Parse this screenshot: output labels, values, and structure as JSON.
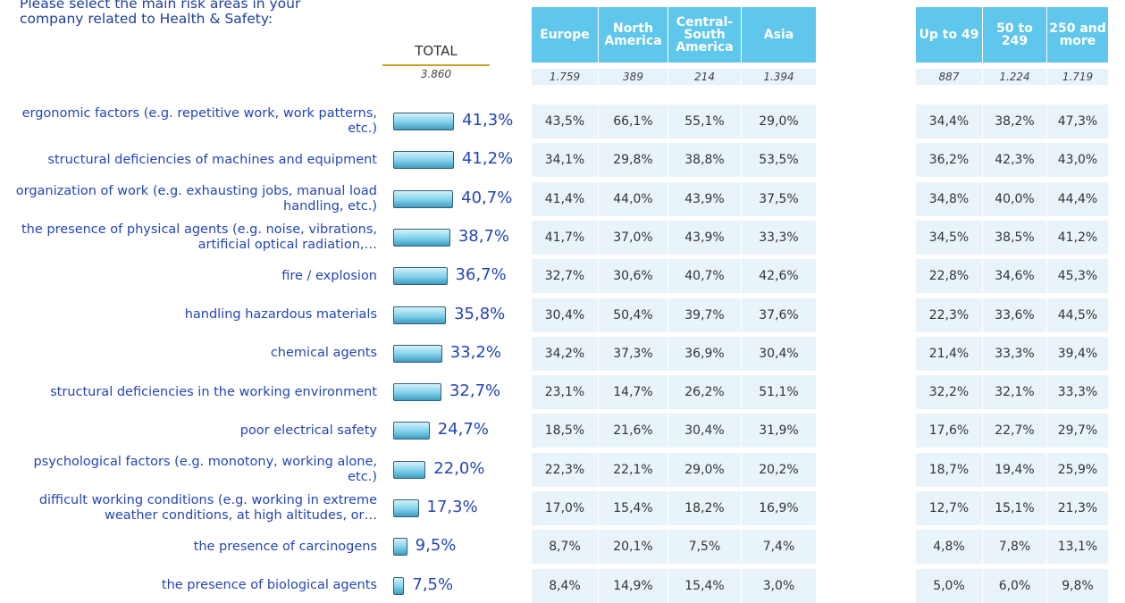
{
  "chart_data": {
    "type": "bar",
    "title": "Please select the main risk areas in your company related to Health & Safety:",
    "total_label": "TOTAL",
    "total_base": "3.860",
    "color": "#7fd0ea",
    "categories": [
      "ergonomic factors (e.g. repetitive work, work patterns, etc.)",
      "structural deficiencies of machines and equipment",
      "organization of work (e.g. exhausting jobs, manual load handling, etc.)",
      "the presence of physical agents (e.g. noise, vibrations, artificial optical radiation,…",
      "fire / explosion",
      "handling hazardous materials",
      "chemical agents",
      "structural deficiencies in the working environment",
      "poor electrical safety",
      "psychological factors (e.g. monotony, working alone, etc.)",
      "difficult working conditions (e.g. working in extreme weather conditions, at high altitudes, or…",
      "the presence of carcinogens",
      "the presence of biological agents"
    ],
    "values": [
      41.3,
      41.2,
      40.7,
      38.7,
      36.7,
      35.8,
      33.2,
      32.7,
      24.7,
      22.0,
      17.3,
      9.5,
      7.5
    ],
    "value_labels": [
      "41,3%",
      "41,2%",
      "40,7%",
      "38,7%",
      "36,7%",
      "35,8%",
      "33,2%",
      "32,7%",
      "24,7%",
      "22,0%",
      "17,3%",
      "9,5%",
      "7,5%"
    ],
    "regions": {
      "headers": [
        "Europe",
        "North America",
        "Central-South America",
        "Asia"
      ],
      "bases": [
        "1.759",
        "389",
        "214",
        "1.394"
      ],
      "rows": [
        [
          "43,5%",
          "66,1%",
          "55,1%",
          "29,0%"
        ],
        [
          "34,1%",
          "29,8%",
          "38,8%",
          "53,5%"
        ],
        [
          "41,4%",
          "44,0%",
          "43,9%",
          "37,5%"
        ],
        [
          "41,7%",
          "37,0%",
          "43,9%",
          "33,3%"
        ],
        [
          "32,7%",
          "30,6%",
          "40,7%",
          "42,6%"
        ],
        [
          "30,4%",
          "50,4%",
          "39,7%",
          "37,6%"
        ],
        [
          "34,2%",
          "37,3%",
          "36,9%",
          "30,4%"
        ],
        [
          "23,1%",
          "14,7%",
          "26,2%",
          "51,1%"
        ],
        [
          "18,5%",
          "21,6%",
          "30,4%",
          "31,9%"
        ],
        [
          "22,3%",
          "22,1%",
          "29,0%",
          "20,2%"
        ],
        [
          "17,0%",
          "15,4%",
          "18,2%",
          "16,9%"
        ],
        [
          "8,7%",
          "20,1%",
          "7,5%",
          "7,4%"
        ],
        [
          "8,4%",
          "14,9%",
          "15,4%",
          "3,0%"
        ]
      ]
    },
    "sizes": {
      "headers": [
        "Up to 49",
        "50 to 249",
        "250 and more"
      ],
      "bases": [
        "887",
        "1.224",
        "1.719"
      ],
      "rows": [
        [
          "34,4%",
          "38,2%",
          "47,3%"
        ],
        [
          "36,2%",
          "42,3%",
          "43,0%"
        ],
        [
          "34,8%",
          "40,0%",
          "44,4%"
        ],
        [
          "34,5%",
          "38,5%",
          "41,2%"
        ],
        [
          "22,8%",
          "34,6%",
          "45,3%"
        ],
        [
          "22,3%",
          "33,6%",
          "44,5%"
        ],
        [
          "21,4%",
          "33,3%",
          "39,4%"
        ],
        [
          "32,2%",
          "32,1%",
          "33,3%"
        ],
        [
          "17,6%",
          "22,7%",
          "29,7%"
        ],
        [
          "18,7%",
          "19,4%",
          "25,9%"
        ],
        [
          "12,7%",
          "15,1%",
          "21,3%"
        ],
        [
          "4,8%",
          "7,8%",
          "13,1%"
        ],
        [
          "5,0%",
          "6,0%",
          "9,8%"
        ]
      ]
    }
  }
}
